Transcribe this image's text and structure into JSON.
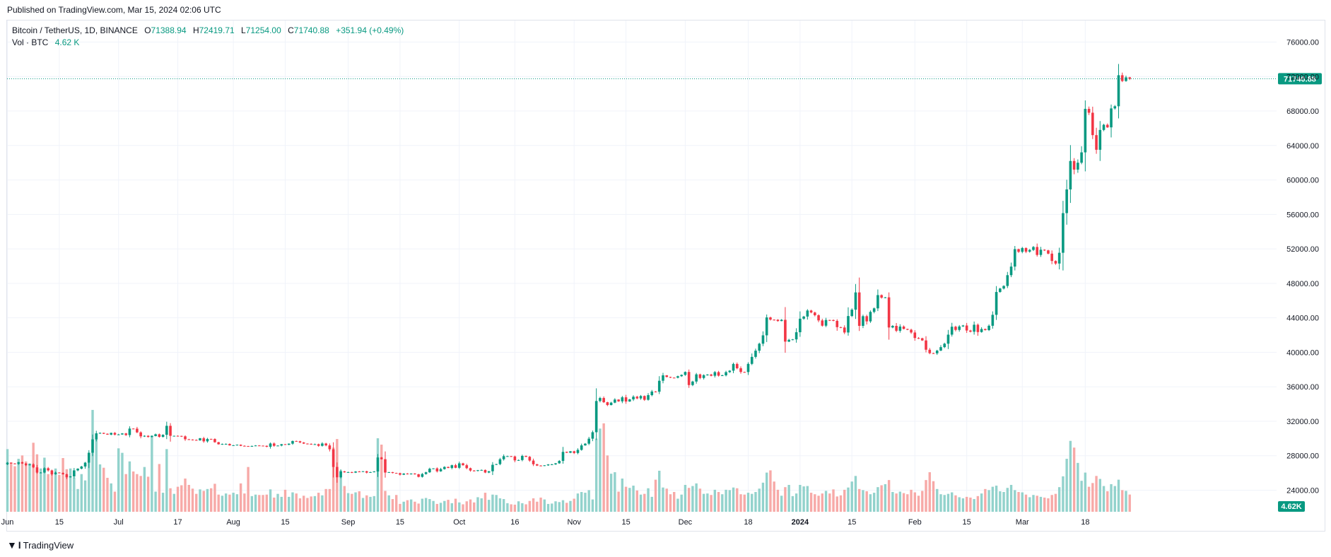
{
  "header": {
    "published": "Published on TradingView.com, Mar 15, 2024 02:06 UTC"
  },
  "legend": {
    "symbol": "Bitcoin / TetherUS, 1D, BINANCE",
    "open_label": "O",
    "open": "71388.94",
    "high_label": "H",
    "high": "72419.71",
    "low_label": "L",
    "low": "71254.00",
    "close_label": "C",
    "close": "71740.88",
    "change": "+351.94 (+0.49%)",
    "vol_label": "Vol · BTC",
    "vol": "4.62 K"
  },
  "footer": {
    "brand": "TradingView"
  },
  "colors": {
    "up": "#089981",
    "down": "#f23645",
    "vol_up": "#92d2cc",
    "vol_down": "#f7a9a7",
    "grid": "#f0f3fa"
  },
  "chart_data": {
    "type": "candlestick",
    "title": "Bitcoin / TetherUS, 1D, BINANCE",
    "price_axis": {
      "ticks": [
        "76000.00",
        "72000.00",
        "68000.00",
        "64000.00",
        "60000.00",
        "56000.00",
        "52000.00",
        "48000.00",
        "44000.00",
        "40000.00",
        "36000.00",
        "32000.00",
        "28000.00",
        "24000.00"
      ],
      "ylim": [
        21500,
        78500
      ],
      "last_price": "71740.88",
      "last_volume": "4.62K"
    },
    "time_axis": {
      "ticks": [
        {
          "label": "Jun",
          "day": 0
        },
        {
          "label": "15",
          "day": 14
        },
        {
          "label": "Jul",
          "day": 30
        },
        {
          "label": "17",
          "day": 46
        },
        {
          "label": "Aug",
          "day": 61
        },
        {
          "label": "15",
          "day": 75
        },
        {
          "label": "Sep",
          "day": 92
        },
        {
          "label": "15",
          "day": 106
        },
        {
          "label": "Oct",
          "day": 122
        },
        {
          "label": "16",
          "day": 137
        },
        {
          "label": "Nov",
          "day": 153
        },
        {
          "label": "15",
          "day": 167
        },
        {
          "label": "Dec",
          "day": 183
        },
        {
          "label": "18",
          "day": 200
        },
        {
          "label": "2024",
          "day": 214,
          "bold": true
        },
        {
          "label": "15",
          "day": 228
        },
        {
          "label": "Feb",
          "day": 245
        },
        {
          "label": "15",
          "day": 259
        },
        {
          "label": "Mar",
          "day": 274
        },
        {
          "label": "18",
          "day": 291
        }
      ]
    },
    "closes": [
      27200,
      27100,
      27050,
      27250,
      27100,
      26900,
      27000,
      26650,
      26050,
      26050,
      26550,
      26300,
      25850,
      26050,
      26000,
      25850,
      25500,
      25600,
      26300,
      26500,
      26750,
      27200,
      28350,
      29900,
      30600,
      30650,
      30550,
      30450,
      30650,
      30450,
      30470,
      30590,
      30400,
      31150,
      31140,
      30710,
      30250,
      30310,
      30180,
      30280,
      30490,
      30190,
      30430,
      31470,
      30310,
      30310,
      30300,
      30250,
      29910,
      29880,
      29830,
      29790,
      30030,
      29670,
      29950,
      29940,
      29570,
      29330,
      29370,
      29370,
      29200,
      29220,
      29280,
      29150,
      29120,
      29070,
      29130,
      29190,
      29170,
      29150,
      29040,
      29420,
      29150,
      29180,
      29340,
      29270,
      29400,
      29710,
      29680,
      29540,
      29410,
      29380,
      29320,
      29340,
      29150,
      29420,
      29200,
      28750,
      26700,
      25500,
      26180,
      26080,
      26100,
      26040,
      26170,
      26150,
      26200,
      26040,
      26100,
      26170,
      27800,
      27600,
      26050,
      26100,
      26000,
      25980,
      25800,
      25930,
      25850,
      25930,
      25850,
      25550,
      25880,
      26080,
      26490,
      26530,
      26190,
      26450,
      26700,
      26580,
      26900,
      26600,
      27120,
      26900,
      26560,
      26280,
      26240,
      26320,
      26350,
      26050,
      26200,
      26950,
      27030,
      27590,
      27950,
      27950,
      27920,
      27460,
      27500,
      27980,
      27880,
      27440,
      27010,
      26860,
      26820,
      26890,
      26990,
      27000,
      27120,
      27400,
      28450,
      28350,
      28520,
      28320,
      28680,
      29200,
      29400,
      29980,
      30730,
      34350,
      34700,
      34210,
      33880,
      34160,
      34520,
      34310,
      34780,
      34290,
      34540,
      34850,
      34650,
      34930,
      34490,
      35030,
      35450,
      35430,
      36700,
      37330,
      37140,
      37060,
      37050,
      37230,
      37380,
      37720,
      36200,
      36610,
      37440,
      37020,
      37350,
      37420,
      37280,
      37700,
      37290,
      37330,
      37700,
      37870,
      38650,
      38150,
      37720,
      37710,
      38660,
      39470,
      40190,
      41000,
      41970,
      44050,
      43790,
      43780,
      43630,
      43770,
      41240,
      41450,
      41500,
      42330,
      43900,
      44150,
      44850,
      44620,
      44300,
      43700,
      43090,
      43750,
      43740,
      43650,
      42920,
      42880,
      42300,
      44210,
      44950,
      46950,
      43070,
      44190,
      43590,
      44690,
      45100,
      46640,
      46340,
      46380,
      42880,
      43070,
      42500,
      42990,
      42710,
      42620,
      42300,
      41660,
      41630,
      41380,
      40300,
      39900,
      39880,
      40200,
      40600,
      41000,
      42050,
      42970,
      42600,
      43000,
      43110,
      42530,
      42390,
      43200,
      42350,
      42700,
      42580,
      43080,
      44350,
      47000,
      47400,
      47700,
      48950,
      49950,
      51970,
      51660,
      52100,
      51680,
      51880,
      52220,
      51300,
      51900,
      51830,
      51450,
      50600,
      50300,
      51550,
      56150,
      58900,
      62200,
      61200,
      62000,
      63200,
      68250,
      67800,
      65200,
      63500,
      65800,
      66400,
      66100,
      68300,
      68550,
      72150,
      71480,
      71900,
      71740
    ],
    "volumes": [
      16.8,
      13.2,
      12.2,
      14.2,
      15.1,
      13.5,
      13.0,
      18.5,
      15.4,
      11.6,
      14.5,
      10.1,
      10.7,
      11.6,
      9.9,
      14.4,
      11.4,
      11.6,
      9.2,
      6.1,
      10.1,
      8.4,
      14.7,
      27.3,
      20.9,
      12.7,
      11.8,
      9.1,
      7.6,
      5.4,
      17.0,
      15.8,
      10.1,
      13.5,
      10.8,
      10.1,
      9.6,
      12.0,
      9.4,
      20.5,
      5.4,
      12.8,
      5.1,
      16.8,
      6.3,
      4.8,
      6.7,
      7.1,
      8.9,
      7.2,
      6.2,
      4.8,
      6.0,
      5.6,
      6.1,
      6.3,
      7.5,
      4.6,
      4.3,
      4.9,
      4.6,
      5.1,
      4.7,
      7.6,
      4.9,
      12.0,
      4.2,
      4.6,
      4.5,
      4.5,
      4.6,
      6.0,
      3.8,
      4.8,
      4.0,
      5.9,
      4.0,
      5.2,
      4.9,
      3.6,
      4.3,
      3.7,
      4.1,
      4.2,
      5.1,
      4.4,
      6.1,
      6.1,
      17.2,
      19.5,
      11.1,
      6.9,
      5.0,
      4.8,
      5.2,
      5.5,
      3.7,
      4.4,
      4.0,
      4.2,
      19.7,
      18.0,
      5.6,
      4.4,
      3.4,
      4.5,
      2.1,
      2.7,
      3.1,
      3.3,
      2.7,
      2.2,
      3.5,
      3.7,
      3.4,
      2.9,
      2.1,
      2.4,
      2.9,
      3.2,
      2.3,
      3.5,
      2.5,
      2.0,
      2.8,
      3.3,
      2.5,
      3.9,
      3.6,
      5.1,
      3.2,
      4.6,
      4.5,
      3.6,
      3.4,
      2.3,
      2.0,
      1.9,
      2.8,
      2.3,
      2.0,
      2.9,
      3.6,
      2.7,
      3.8,
      3.3,
      2.1,
      2.2,
      2.8,
      2.6,
      3.1,
      2.4,
      2.9,
      3.5,
      4.9,
      5.3,
      5.1,
      5.8,
      3.3,
      19.6,
      22.3,
      23.7,
      15.1,
      10.2,
      10.6,
      5.4,
      8.9,
      6.7,
      6.4,
      7.0,
      5.7,
      4.6,
      4.8,
      6.3,
      4.0,
      8.6,
      11.0,
      6.5,
      6.2,
      4.7,
      5.3,
      3.5,
      4.6,
      7.2,
      6.4,
      6.9,
      7.6,
      6.2,
      4.8,
      4.9,
      4.5,
      5.9,
      5.3,
      4.7,
      5.9,
      5.8,
      6.5,
      6.3,
      4.7,
      4.6,
      5.1,
      4.8,
      5.3,
      6.2,
      7.8,
      10.5,
      11.1,
      8.1,
      5.9,
      4.3,
      6.6,
      7.2,
      4.2,
      4.9,
      7.2,
      6.8,
      6.9,
      5.1,
      4.7,
      4.3,
      4.9,
      5.6,
      4.9,
      6.0,
      4.1,
      4.4,
      5.9,
      6.5,
      8.1,
      9.6,
      6.1,
      5.8,
      5.5,
      4.7,
      5.1,
      6.6,
      7.1,
      7.4,
      8.5,
      5.3,
      4.9,
      5.4,
      5.0,
      4.7,
      5.9,
      5.2,
      4.3,
      5.6,
      8.5,
      10.6,
      8.2,
      6.1,
      4.7,
      4.5,
      4.8,
      5.2,
      4.4,
      3.9,
      3.6,
      4.0,
      3.8,
      3.4,
      4.2,
      4.9,
      6.1,
      5.8,
      6.7,
      7.0,
      5.5,
      5.3,
      6.4,
      7.2,
      5.8,
      5.3,
      5.2,
      4.6,
      3.9,
      4.5,
      4.3,
      4.0,
      3.8,
      3.6,
      4.5,
      4.8,
      6.6,
      9.5,
      14.2,
      19.0,
      17.2,
      13.1,
      8.3,
      10.5,
      6.7,
      7.7,
      9.6,
      8.8,
      6.9,
      5.5,
      7.4,
      6.9,
      8.6,
      5.8,
      5.6,
      4.62
    ]
  }
}
